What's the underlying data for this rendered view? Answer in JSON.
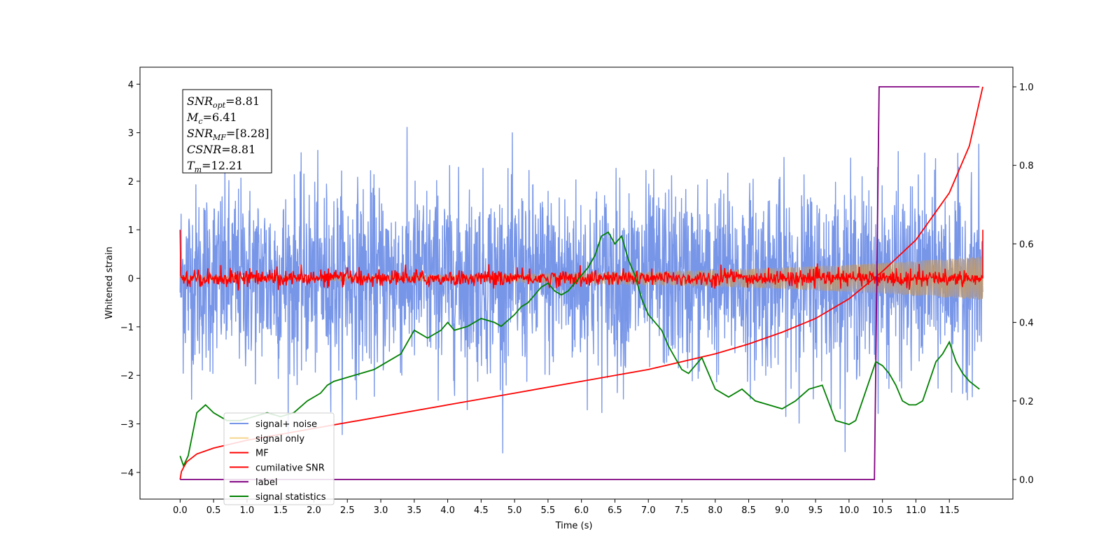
{
  "chart_data": {
    "type": "line",
    "xlabel": "Time (s)",
    "ylabel": "Whitened strain",
    "xlim": [
      -0.6,
      12.45
    ],
    "ylim": [
      -4.55,
      4.35
    ],
    "y2lim": [
      -0.05,
      1.05
    ],
    "x_ticks": [
      "0.0",
      "0.5",
      "1.0",
      "1.5",
      "2.0",
      "2.5",
      "3.0",
      "3.5",
      "4.0",
      "4.5",
      "5.0",
      "5.5",
      "6.0",
      "6.5",
      "7.0",
      "7.5",
      "8.0",
      "8.5",
      "9.0",
      "9.5",
      "10.0",
      "10.5",
      "11.0",
      "11.5"
    ],
    "y_ticks": [
      "4",
      "3",
      "2",
      "1",
      "0",
      "−1",
      "−2",
      "−3",
      "−4"
    ],
    "y2_ticks": [
      "1.0",
      "0.8",
      "0.6",
      "0.4",
      "0.2",
      "0.0"
    ],
    "legend_position": "lower-left",
    "legend": [
      {
        "label": "signal+ noise",
        "color": "#7896e8"
      },
      {
        "label": "signal only",
        "color": "#f5d58c"
      },
      {
        "label": "MF",
        "color": "#ff0000"
      },
      {
        "label": "cumilative SNR",
        "color": "#ff0000"
      },
      {
        "label": "label",
        "color": "#800080"
      },
      {
        "label": "signal statistics",
        "color": "#008000"
      }
    ],
    "stats_box": [
      {
        "sym": "SNR",
        "sub": "opt",
        "val": "=8.81"
      },
      {
        "sym": "M",
        "sub": "c",
        "val": "=6.41"
      },
      {
        "sym": "SNR",
        "sub": "MF",
        "val": "=[8.28]"
      },
      {
        "sym": "CSNR",
        "sub": "",
        "val": "=8.81"
      },
      {
        "sym": "T",
        "sub": "m",
        "val": "=12.21"
      }
    ],
    "series": [
      {
        "name": "signal+ noise",
        "axis": "left",
        "color": "#7896e8",
        "x_range": [
          0.0,
          12.0
        ],
        "envelope_upper": 2.2,
        "envelope_lower": -2.3,
        "max": 3.94,
        "min": -3.6
      },
      {
        "name": "signal only",
        "axis": "left",
        "color": "#bd9b75",
        "x_range": [
          0.0,
          12.0
        ],
        "amplitude_start": 0.05,
        "amplitude_end": 0.45
      },
      {
        "name": "MF",
        "axis": "left",
        "color": "#ff0000",
        "x_range": [
          0.0,
          12.0
        ],
        "start": 1.0,
        "end": 1.0,
        "typical_range": [
          -0.15,
          0.3
        ]
      },
      {
        "name": "cumilative SNR",
        "axis": "right",
        "color": "#ff0000",
        "x": [
          0.0,
          0.02,
          0.05,
          0.1,
          0.25,
          0.5,
          1.0,
          1.5,
          2.0,
          3.0,
          4.0,
          5.0,
          6.0,
          7.0,
          7.5,
          8.0,
          8.5,
          9.0,
          9.5,
          10.0,
          10.5,
          11.0,
          11.5,
          11.8,
          12.0
        ],
        "values": [
          0.0,
          0.02,
          0.03,
          0.045,
          0.065,
          0.08,
          0.1,
          0.115,
          0.13,
          0.16,
          0.19,
          0.22,
          0.25,
          0.28,
          0.3,
          0.32,
          0.345,
          0.375,
          0.41,
          0.46,
          0.53,
          0.61,
          0.73,
          0.85,
          1.0
        ]
      },
      {
        "name": "label",
        "axis": "right",
        "color": "#800080",
        "x": [
          0.0,
          10.38,
          10.45,
          11.95
        ],
        "values": [
          0.0,
          0.0,
          1.0,
          1.0
        ]
      },
      {
        "name": "signal statistics",
        "axis": "right",
        "color": "#008000",
        "x": [
          0.0,
          0.05,
          0.12,
          0.25,
          0.38,
          0.5,
          0.7,
          0.9,
          1.1,
          1.3,
          1.5,
          1.7,
          1.9,
          2.1,
          2.2,
          2.3,
          2.5,
          2.7,
          2.9,
          3.0,
          3.1,
          3.3,
          3.5,
          3.7,
          3.8,
          3.9,
          4.0,
          4.1,
          4.3,
          4.5,
          4.7,
          4.8,
          5.0,
          5.1,
          5.2,
          5.3,
          5.4,
          5.5,
          5.6,
          5.7,
          5.8,
          5.9,
          6.0,
          6.1,
          6.2,
          6.3,
          6.4,
          6.5,
          6.6,
          6.7,
          6.8,
          6.9,
          7.0,
          7.1,
          7.2,
          7.3,
          7.4,
          7.5,
          7.6,
          7.7,
          7.8,
          7.9,
          8.0,
          8.2,
          8.4,
          8.6,
          8.8,
          9.0,
          9.2,
          9.4,
          9.6,
          9.8,
          10.0,
          10.1,
          10.2,
          10.3,
          10.4,
          10.5,
          10.6,
          10.7,
          10.8,
          10.9,
          11.0,
          11.1,
          11.2,
          11.3,
          11.4,
          11.5,
          11.6,
          11.7,
          11.8,
          11.95
        ],
        "values": [
          0.06,
          0.035,
          0.06,
          0.17,
          0.19,
          0.17,
          0.15,
          0.15,
          0.16,
          0.17,
          0.16,
          0.17,
          0.2,
          0.22,
          0.24,
          0.25,
          0.26,
          0.27,
          0.28,
          0.29,
          0.3,
          0.32,
          0.38,
          0.36,
          0.37,
          0.38,
          0.4,
          0.38,
          0.39,
          0.41,
          0.4,
          0.39,
          0.42,
          0.44,
          0.45,
          0.47,
          0.49,
          0.5,
          0.48,
          0.47,
          0.48,
          0.5,
          0.52,
          0.54,
          0.57,
          0.62,
          0.63,
          0.6,
          0.62,
          0.56,
          0.52,
          0.46,
          0.42,
          0.4,
          0.38,
          0.34,
          0.31,
          0.28,
          0.27,
          0.29,
          0.31,
          0.27,
          0.23,
          0.21,
          0.23,
          0.2,
          0.19,
          0.18,
          0.2,
          0.23,
          0.24,
          0.15,
          0.14,
          0.15,
          0.2,
          0.25,
          0.3,
          0.29,
          0.27,
          0.24,
          0.2,
          0.19,
          0.19,
          0.2,
          0.25,
          0.3,
          0.32,
          0.35,
          0.3,
          0.27,
          0.25,
          0.23
        ]
      }
    ]
  }
}
